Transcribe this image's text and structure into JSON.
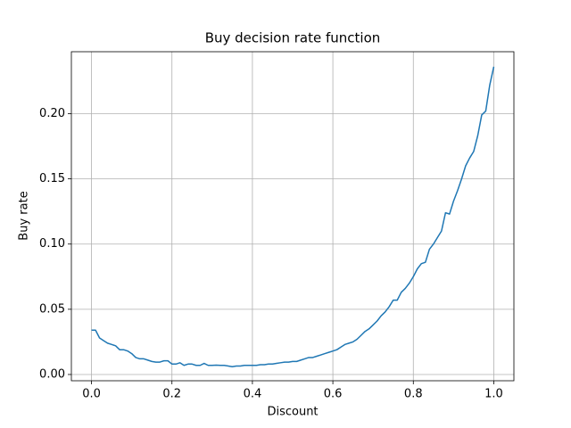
{
  "chart_data": {
    "type": "line",
    "title": "Buy decision rate function",
    "x_label": "Discount",
    "y_label": "Buy rate",
    "x": [
      0,
      0.01,
      0.02,
      0.03,
      0.04,
      0.05,
      0.06,
      0.07,
      0.08,
      0.09,
      0.1,
      0.11,
      0.12,
      0.13,
      0.14,
      0.15,
      0.16,
      0.17,
      0.18,
      0.19,
      0.2,
      0.21,
      0.22,
      0.23,
      0.24,
      0.25,
      0.26,
      0.27,
      0.28,
      0.29,
      0.3,
      0.31,
      0.32,
      0.33,
      0.34,
      0.35,
      0.36,
      0.37,
      0.38,
      0.39,
      0.4,
      0.41,
      0.42,
      0.43,
      0.44,
      0.45,
      0.46,
      0.47,
      0.48,
      0.49,
      0.5,
      0.51,
      0.52,
      0.53,
      0.54,
      0.55,
      0.56,
      0.57,
      0.58,
      0.59,
      0.6,
      0.61,
      0.62,
      0.63,
      0.64,
      0.65,
      0.66,
      0.67,
      0.68,
      0.69,
      0.7,
      0.71,
      0.72,
      0.73,
      0.74,
      0.75,
      0.76,
      0.77,
      0.78,
      0.79,
      0.8,
      0.81,
      0.82,
      0.83,
      0.84,
      0.85,
      0.86,
      0.87,
      0.88,
      0.89,
      0.9,
      0.91,
      0.92,
      0.93,
      0.94,
      0.95,
      0.96,
      0.97,
      0.98,
      0.99,
      1.0
    ],
    "series": [
      {
        "name": "Buy rate",
        "color": "#1f77b4",
        "values": [
          0.034,
          0.034,
          0.028,
          0.026,
          0.024,
          0.023,
          0.022,
          0.019,
          0.019,
          0.018,
          0.016,
          0.013,
          0.012,
          0.012,
          0.011,
          0.01,
          0.0095,
          0.0095,
          0.0105,
          0.0105,
          0.008,
          0.008,
          0.009,
          0.007,
          0.008,
          0.008,
          0.007,
          0.007,
          0.0085,
          0.007,
          0.007,
          0.0072,
          0.007,
          0.007,
          0.0065,
          0.006,
          0.0065,
          0.0065,
          0.007,
          0.007,
          0.007,
          0.007,
          0.0075,
          0.0075,
          0.008,
          0.008,
          0.0085,
          0.009,
          0.0095,
          0.0095,
          0.01,
          0.01,
          0.011,
          0.012,
          0.013,
          0.013,
          0.014,
          0.015,
          0.016,
          0.017,
          0.018,
          0.019,
          0.021,
          0.023,
          0.024,
          0.025,
          0.027,
          0.03,
          0.033,
          0.035,
          0.038,
          0.041,
          0.045,
          0.048,
          0.052,
          0.057,
          0.057,
          0.063,
          0.066,
          0.07,
          0.075,
          0.081,
          0.085,
          0.086,
          0.096,
          0.1,
          0.105,
          0.11,
          0.124,
          0.123,
          0.133,
          0.141,
          0.15,
          0.16,
          0.166,
          0.171,
          0.183,
          0.199,
          0.202,
          0.222,
          0.236
        ]
      }
    ],
    "xlim": [
      -0.05,
      1.05
    ],
    "ylim": [
      -0.0048,
      0.2475
    ],
    "xticks": [
      {
        "value": 0,
        "label": "0.0"
      },
      0.2,
      0.4,
      0.6,
      0.8,
      {
        "value": 1,
        "label": "1.0"
      }
    ],
    "yticks": [
      {
        "value": 0,
        "label": "0.00"
      },
      {
        "value": 0.05,
        "label": "0.05"
      },
      {
        "value": 0.1,
        "label": "0.10"
      },
      {
        "value": 0.15,
        "label": "0.15"
      },
      {
        "value": 0.2,
        "label": "0.20"
      }
    ],
    "grid": true
  }
}
